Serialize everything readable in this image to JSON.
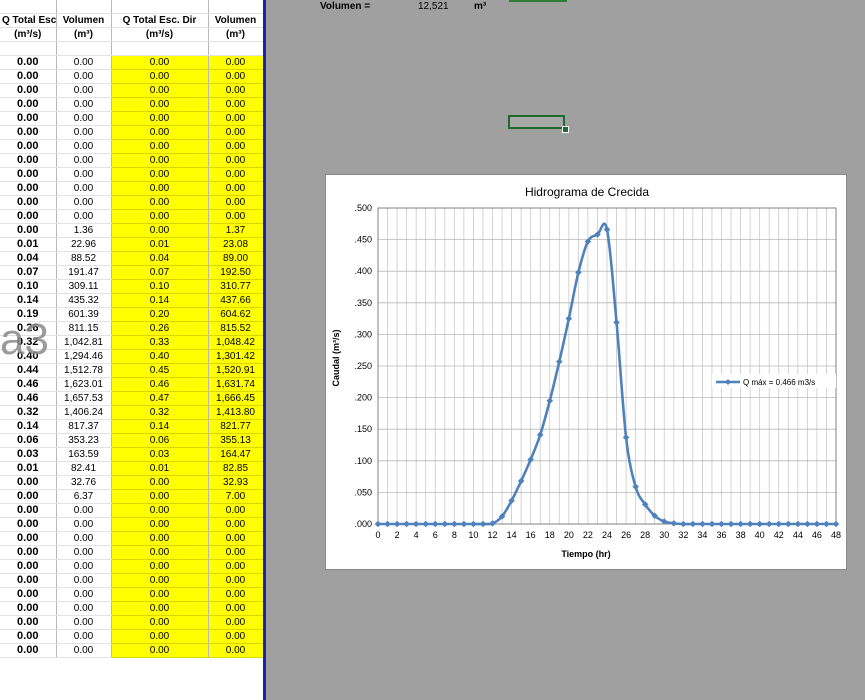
{
  "header": {
    "volume_label": "Volumen =",
    "volume_value": "12,521",
    "volume_unit": "m³"
  },
  "table": {
    "columns": [
      "Q Total Esc. Dir",
      "Volumen",
      "Q Total Esc. Dir",
      "Volumen"
    ],
    "units": [
      "(m³/s)",
      "(m³)",
      "(m³/s)",
      "(m³)"
    ],
    "rows": [
      [
        "0.00",
        "0.00",
        "0.00",
        "0.00"
      ],
      [
        "0.00",
        "0.00",
        "0.00",
        "0.00"
      ],
      [
        "0.00",
        "0.00",
        "0.00",
        "0.00"
      ],
      [
        "0.00",
        "0.00",
        "0.00",
        "0.00"
      ],
      [
        "0.00",
        "0.00",
        "0.00",
        "0.00"
      ],
      [
        "0.00",
        "0.00",
        "0.00",
        "0.00"
      ],
      [
        "0.00",
        "0.00",
        "0.00",
        "0.00"
      ],
      [
        "0.00",
        "0.00",
        "0.00",
        "0.00"
      ],
      [
        "0.00",
        "0.00",
        "0.00",
        "0.00"
      ],
      [
        "0.00",
        "0.00",
        "0.00",
        "0.00"
      ],
      [
        "0.00",
        "0.00",
        "0.00",
        "0.00"
      ],
      [
        "0.00",
        "0.00",
        "0.00",
        "0.00"
      ],
      [
        "0.00",
        "1.36",
        "0.00",
        "1.37"
      ],
      [
        "0.01",
        "22.96",
        "0.01",
        "23.08"
      ],
      [
        "0.04",
        "88.52",
        "0.04",
        "89.00"
      ],
      [
        "0.07",
        "191.47",
        "0.07",
        "192.50"
      ],
      [
        "0.10",
        "309.11",
        "0.10",
        "310.77"
      ],
      [
        "0.14",
        "435.32",
        "0.14",
        "437.66"
      ],
      [
        "0.19",
        "601.39",
        "0.20",
        "604.62"
      ],
      [
        "0.26",
        "811.15",
        "0.26",
        "815.52"
      ],
      [
        "0.32",
        "1,042.81",
        "0.33",
        "1,048.42"
      ],
      [
        "0.40",
        "1,294.46",
        "0.40",
        "1,301.42"
      ],
      [
        "0.44",
        "1,512.78",
        "0.45",
        "1,520.91"
      ],
      [
        "0.46",
        "1,623.01",
        "0.46",
        "1,631.74"
      ],
      [
        "0.46",
        "1,657.53",
        "0.47",
        "1,666.45"
      ],
      [
        "0.32",
        "1,406.24",
        "0.32",
        "1,413.80"
      ],
      [
        "0.14",
        "817.37",
        "0.14",
        "821.77"
      ],
      [
        "0.06",
        "353.23",
        "0.06",
        "355.13"
      ],
      [
        "0.03",
        "163.59",
        "0.03",
        "164.47"
      ],
      [
        "0.01",
        "82.41",
        "0.01",
        "82.85"
      ],
      [
        "0.00",
        "32.76",
        "0.00",
        "32.93"
      ],
      [
        "0.00",
        "6.37",
        "0.00",
        "7.00"
      ],
      [
        "0.00",
        "0.00",
        "0.00",
        "0.00"
      ],
      [
        "0.00",
        "0.00",
        "0.00",
        "0.00"
      ],
      [
        "0.00",
        "0.00",
        "0.00",
        "0.00"
      ],
      [
        "0.00",
        "0.00",
        "0.00",
        "0.00"
      ],
      [
        "0.00",
        "0.00",
        "0.00",
        "0.00"
      ],
      [
        "0.00",
        "0.00",
        "0.00",
        "0.00"
      ],
      [
        "0.00",
        "0.00",
        "0.00",
        "0.00"
      ],
      [
        "0.00",
        "0.00",
        "0.00",
        "0.00"
      ],
      [
        "0.00",
        "0.00",
        "0.00",
        "0.00"
      ],
      [
        "0.00",
        "0.00",
        "0.00",
        "0.00"
      ],
      [
        "0.00",
        "0.00",
        "0.00",
        "0.00"
      ]
    ]
  },
  "watermark": "a3",
  "colors": {
    "highlight": "#ffff00",
    "series": "#4f81bd",
    "divider": "#1f1fb0",
    "background": "#a0a0a0"
  },
  "chart_data": {
    "type": "line",
    "title": "Hidrograma de Crecida",
    "xlabel": "Tiempo (hr)",
    "ylabel": "Caudal (m³/s)",
    "xlim": [
      0,
      48
    ],
    "ylim": [
      0,
      0.5
    ],
    "xticks": [
      "0",
      "2",
      "4",
      "6",
      "8",
      "10",
      "12",
      "14",
      "16",
      "18",
      "20",
      "22",
      "24",
      "26",
      "28",
      "30",
      "32",
      "34",
      "36",
      "38",
      "40",
      "42",
      "44",
      "46",
      "48"
    ],
    "yticks": [
      ".000",
      ".050",
      ".100",
      ".150",
      ".200",
      ".250",
      ".300",
      ".350",
      ".400",
      ".450",
      ".500"
    ],
    "grid": true,
    "legend_position": "right",
    "series": [
      {
        "name": "Q máx = 0.466 m3/s",
        "color": "#4f81bd",
        "x": [
          0,
          1,
          2,
          3,
          4,
          5,
          6,
          7,
          8,
          9,
          10,
          11,
          12,
          13,
          14,
          15,
          16,
          17,
          18,
          19,
          20,
          21,
          22,
          23,
          24,
          25,
          26,
          27,
          28,
          29,
          30,
          31,
          32,
          33,
          34,
          35,
          36,
          37,
          38,
          39,
          40,
          41,
          42,
          43,
          44,
          45,
          46,
          47,
          48
        ],
        "y": [
          0,
          0,
          0,
          0,
          0,
          0,
          0,
          0,
          0,
          0,
          0,
          0,
          0.001,
          0.012,
          0.037,
          0.068,
          0.102,
          0.141,
          0.195,
          0.257,
          0.325,
          0.398,
          0.447,
          0.458,
          0.466,
          0.319,
          0.137,
          0.059,
          0.031,
          0.013,
          0.004,
          0.001,
          0,
          0,
          0,
          0,
          0,
          0,
          0,
          0,
          0,
          0,
          0,
          0,
          0,
          0,
          0,
          0,
          0
        ]
      }
    ]
  }
}
